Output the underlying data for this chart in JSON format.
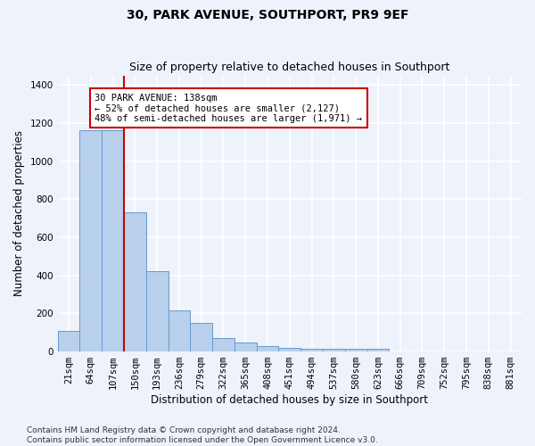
{
  "title": "30, PARK AVENUE, SOUTHPORT, PR9 9EF",
  "subtitle": "Size of property relative to detached houses in Southport",
  "xlabel": "Distribution of detached houses by size in Southport",
  "ylabel": "Number of detached properties",
  "categories": [
    "21sqm",
    "64sqm",
    "107sqm",
    "150sqm",
    "193sqm",
    "236sqm",
    "279sqm",
    "322sqm",
    "365sqm",
    "408sqm",
    "451sqm",
    "494sqm",
    "537sqm",
    "580sqm",
    "623sqm",
    "666sqm",
    "709sqm",
    "752sqm",
    "795sqm",
    "838sqm",
    "881sqm"
  ],
  "bar_heights": [
    110,
    1160,
    1160,
    730,
    420,
    215,
    150,
    70,
    48,
    30,
    18,
    15,
    15,
    15,
    15,
    0,
    0,
    0,
    0,
    0,
    0
  ],
  "bar_color": "#b8d0eb",
  "bar_edge_color": "#6699cc",
  "property_line_x": 3.0,
  "property_line_color": "#cc0000",
  "annotation_text": "30 PARK AVENUE: 138sqm\n← 52% of detached houses are smaller (2,127)\n48% of semi-detached houses are larger (1,971) →",
  "annotation_box_color": "#ffffff",
  "annotation_box_edge_color": "#cc0000",
  "ylim": [
    0,
    1450
  ],
  "yticks": [
    0,
    200,
    400,
    600,
    800,
    1000,
    1200,
    1400
  ],
  "footer_line1": "Contains HM Land Registry data © Crown copyright and database right 2024.",
  "footer_line2": "Contains public sector information licensed under the Open Government Licence v3.0.",
  "background_color": "#eef2fb",
  "grid_color": "#ffffff",
  "title_fontsize": 10,
  "subtitle_fontsize": 9,
  "axis_label_fontsize": 8.5,
  "tick_fontsize": 7.5,
  "annotation_fontsize": 7.5,
  "footer_fontsize": 6.5
}
